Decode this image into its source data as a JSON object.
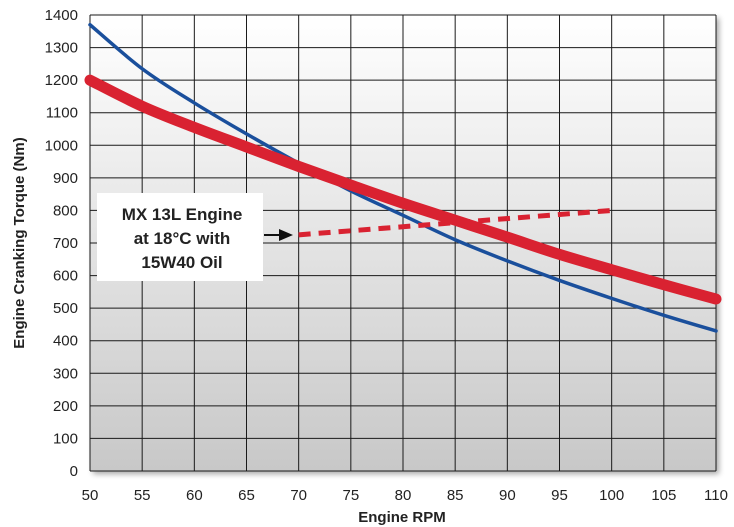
{
  "chart_data": {
    "type": "line",
    "title": "",
    "xlabel": "Engine RPM",
    "ylabel": "Engine Cranking Torque (Nm)",
    "xlim": [
      50,
      110
    ],
    "ylim": [
      0,
      1400
    ],
    "x_ticks": [
      "50",
      "55",
      "60",
      "65",
      "70",
      "75",
      "80",
      "85",
      "90",
      "95",
      "100",
      "105",
      "110"
    ],
    "y_ticks": [
      "0",
      "100",
      "200",
      "300",
      "400",
      "500",
      "600",
      "700",
      "800",
      "900",
      "1000",
      "1100",
      "1200",
      "1300",
      "1400"
    ],
    "grid": true,
    "series": [
      {
        "color": "#1a4f9c",
        "style": "solid",
        "points": [
          [
            50,
            1370
          ],
          [
            55,
            1235
          ],
          [
            60,
            1130
          ],
          [
            65,
            1035
          ],
          [
            70,
            945
          ],
          [
            75,
            860
          ],
          [
            80,
            785
          ],
          [
            85,
            710
          ],
          [
            90,
            645
          ],
          [
            95,
            585
          ],
          [
            100,
            530
          ],
          [
            105,
            478
          ],
          [
            110,
            430
          ]
        ]
      },
      {
        "color": "#d92231",
        "style": "solid-thick",
        "points": [
          [
            50,
            1200
          ],
          [
            55,
            1120
          ],
          [
            60,
            1055
          ],
          [
            65,
            995
          ],
          [
            70,
            935
          ],
          [
            75,
            878
          ],
          [
            80,
            822
          ],
          [
            85,
            770
          ],
          [
            90,
            718
          ],
          [
            95,
            665
          ],
          [
            100,
            618
          ],
          [
            105,
            572
          ],
          [
            110,
            528
          ]
        ]
      },
      {
        "color": "#d92231",
        "style": "dashed",
        "points": [
          [
            70,
            725
          ],
          [
            100,
            800
          ]
        ]
      }
    ],
    "annotation": {
      "lines": [
        "MX 13L Engine",
        "at 18°C with",
        "15W40 Oil"
      ],
      "arrow_to": [
        70,
        725
      ]
    }
  },
  "colors": {
    "plot_background_top": "#ffffff",
    "plot_background_bottom": "#c8c8c8",
    "grid": "#1a1a1a",
    "blue_series": "#1a4f9c",
    "red_series": "#d92231"
  }
}
